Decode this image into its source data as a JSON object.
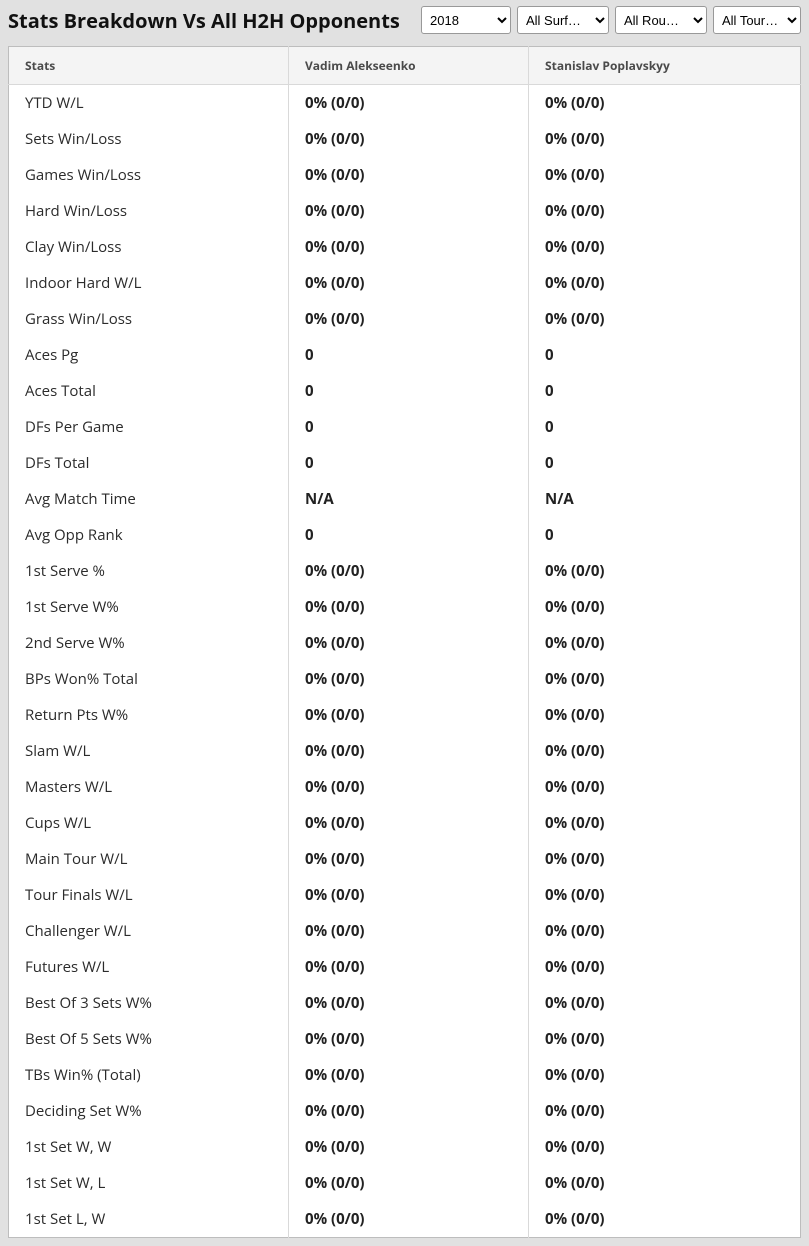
{
  "header": {
    "title": "Stats Breakdown Vs All H2H Opponents",
    "filters": {
      "year": {
        "selected": "2018",
        "options": [
          "2018"
        ]
      },
      "surface": {
        "selected": "All Surf…",
        "options": [
          "All Surf…"
        ]
      },
      "round": {
        "selected": "All Rou…",
        "options": [
          "All Rou…"
        ]
      },
      "tour": {
        "selected": "All Tour…",
        "options": [
          "All Tour…"
        ]
      }
    }
  },
  "table": {
    "columns": [
      "Stats",
      "Vadim Alekseenko",
      "Stanislav Poplavskyy"
    ],
    "rows": [
      {
        "label": "YTD W/L",
        "p1": "0% (0/0)",
        "p2": "0% (0/0)"
      },
      {
        "label": "Sets Win/Loss",
        "p1": "0% (0/0)",
        "p2": "0% (0/0)"
      },
      {
        "label": "Games Win/Loss",
        "p1": "0% (0/0)",
        "p2": "0% (0/0)"
      },
      {
        "label": "Hard Win/Loss",
        "p1": "0% (0/0)",
        "p2": "0% (0/0)"
      },
      {
        "label": "Clay Win/Loss",
        "p1": "0% (0/0)",
        "p2": "0% (0/0)"
      },
      {
        "label": "Indoor Hard W/L",
        "p1": "0% (0/0)",
        "p2": "0% (0/0)"
      },
      {
        "label": "Grass Win/Loss",
        "p1": "0% (0/0)",
        "p2": "0% (0/0)"
      },
      {
        "label": "Aces Pg",
        "p1": "0",
        "p2": "0"
      },
      {
        "label": "Aces Total",
        "p1": "0",
        "p2": "0"
      },
      {
        "label": "DFs Per Game",
        "p1": "0",
        "p2": "0"
      },
      {
        "label": "DFs Total",
        "p1": "0",
        "p2": "0"
      },
      {
        "label": "Avg Match Time",
        "p1": "N/A",
        "p2": "N/A"
      },
      {
        "label": "Avg Opp Rank",
        "p1": "0",
        "p2": "0"
      },
      {
        "label": "1st Serve %",
        "p1": "0% (0/0)",
        "p2": "0% (0/0)"
      },
      {
        "label": "1st Serve W%",
        "p1": "0% (0/0)",
        "p2": "0% (0/0)"
      },
      {
        "label": "2nd Serve W%",
        "p1": "0% (0/0)",
        "p2": "0% (0/0)"
      },
      {
        "label": "BPs Won% Total",
        "p1": "0% (0/0)",
        "p2": "0% (0/0)"
      },
      {
        "label": "Return Pts W%",
        "p1": "0% (0/0)",
        "p2": "0% (0/0)"
      },
      {
        "label": "Slam W/L",
        "p1": "0% (0/0)",
        "p2": "0% (0/0)"
      },
      {
        "label": "Masters W/L",
        "p1": "0% (0/0)",
        "p2": "0% (0/0)"
      },
      {
        "label": "Cups W/L",
        "p1": "0% (0/0)",
        "p2": "0% (0/0)"
      },
      {
        "label": "Main Tour W/L",
        "p1": "0% (0/0)",
        "p2": "0% (0/0)"
      },
      {
        "label": "Tour Finals W/L",
        "p1": "0% (0/0)",
        "p2": "0% (0/0)"
      },
      {
        "label": "Challenger W/L",
        "p1": "0% (0/0)",
        "p2": "0% (0/0)"
      },
      {
        "label": "Futures W/L",
        "p1": "0% (0/0)",
        "p2": "0% (0/0)"
      },
      {
        "label": "Best Of 3 Sets W%",
        "p1": "0% (0/0)",
        "p2": "0% (0/0)"
      },
      {
        "label": "Best Of 5 Sets W%",
        "p1": "0% (0/0)",
        "p2": "0% (0/0)"
      },
      {
        "label": "TBs Win% (Total)",
        "p1": "0% (0/0)",
        "p2": "0% (0/0)"
      },
      {
        "label": "Deciding Set W%",
        "p1": "0% (0/0)",
        "p2": "0% (0/0)"
      },
      {
        "label": "1st Set W, W",
        "p1": "0% (0/0)",
        "p2": "0% (0/0)"
      },
      {
        "label": "1st Set W, L",
        "p1": "0% (0/0)",
        "p2": "0% (0/0)"
      },
      {
        "label": "1st Set L, W",
        "p1": "0% (0/0)",
        "p2": "0% (0/0)"
      }
    ]
  }
}
